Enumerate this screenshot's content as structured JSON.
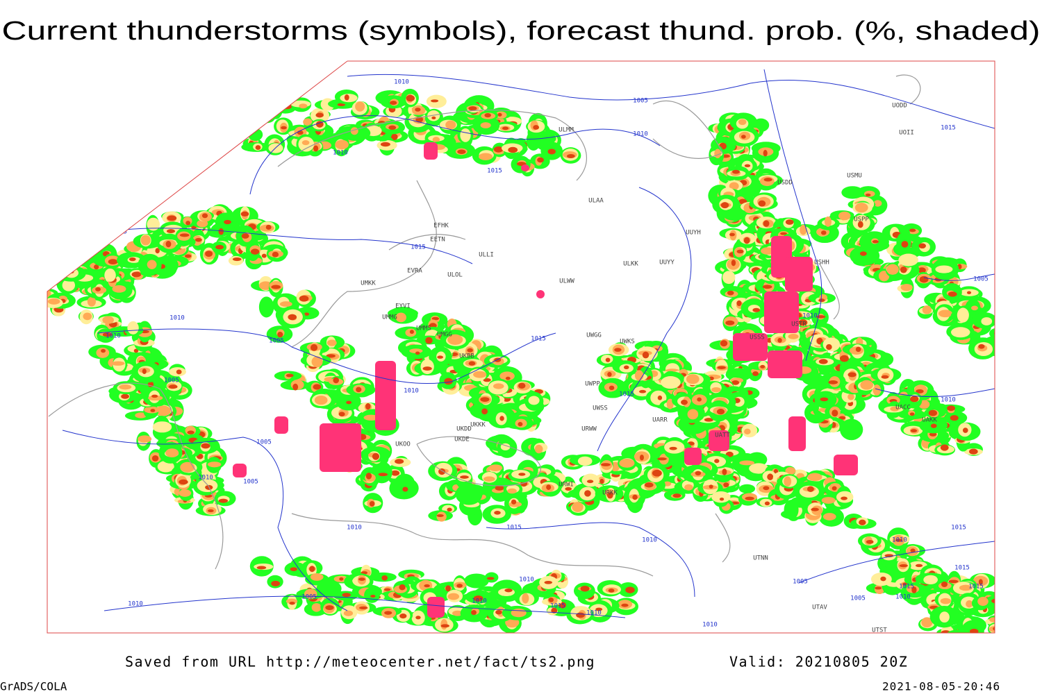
{
  "header": {
    "title": "Current thunderstorms (symbols), forecast thund. prob. (%, shaded)"
  },
  "map": {
    "isobar_labels": [
      1010,
      1005,
      1010,
      1010,
      1015,
      1015,
      1005,
      1015,
      1010,
      1010,
      1005,
      1015,
      1010,
      1005,
      1005,
      1010,
      1015,
      1010,
      1005,
      1010,
      1005,
      1010,
      1015,
      1010,
      1015,
      1010,
      1005,
      1010,
      1010,
      1010,
      1015,
      1010,
      1005,
      1015,
      1015,
      1015,
      1005,
      1010,
      1010
    ],
    "station_labels": [
      "ULAA",
      "UUYH",
      "ULKK",
      "UUYY",
      "ULWW",
      "UWGG",
      "UWKS",
      "UWPP",
      "UWSS",
      "UARR",
      "URWW",
      "URWI",
      "URKK",
      "EFHK",
      "EETN",
      "EVRA",
      "UMKK",
      "EYVI",
      "UMMG",
      "UMMS",
      "UMGG",
      "UKBB",
      "UKKK",
      "UKDD",
      "UKDE",
      "UKOO",
      "USDD",
      "USMU",
      "USPP",
      "USSS",
      "USTR",
      "USHH",
      "UATT",
      "UAKK",
      "UACC",
      "UTNN",
      "UTAV",
      "UTST",
      "UODD",
      "UOII",
      "ULMM",
      "ULLI",
      "ULOL"
    ]
  },
  "footer": {
    "source": "Saved from URL http://meteocenter.net/fact/ts2.png",
    "valid": "Valid: 20210805 20Z",
    "software": "GrADS/COLA",
    "timestamp": "2021-08-05-20:46"
  }
}
